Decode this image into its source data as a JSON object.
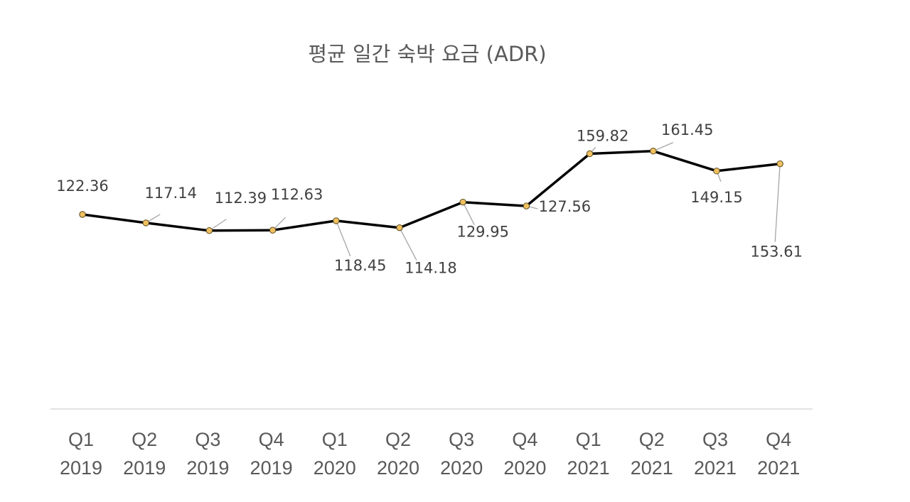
{
  "chart_data": {
    "type": "line",
    "title": "평균 일간 숙박 요금 (ADR)",
    "xlabel": "",
    "ylabel": "",
    "categories": [
      [
        "Q1",
        "2019"
      ],
      [
        "Q2",
        "2019"
      ],
      [
        "Q3",
        "2019"
      ],
      [
        "Q4",
        "2019"
      ],
      [
        "Q1",
        "2020"
      ],
      [
        "Q2",
        "2020"
      ],
      [
        "Q3",
        "2020"
      ],
      [
        "Q4",
        "2020"
      ],
      [
        "Q1",
        "2021"
      ],
      [
        "Q2",
        "2021"
      ],
      [
        "Q3",
        "2021"
      ],
      [
        "Q4",
        "2021"
      ]
    ],
    "series": [
      {
        "values": [
          122.36,
          117.14,
          112.39,
          112.63,
          118.45,
          114.18,
          129.95,
          127.56,
          159.82,
          161.45,
          149.15,
          153.61
        ],
        "labels": [
          "122.36",
          "117.14",
          "112.39",
          "112.63",
          "118.45",
          "114.18",
          "129.95",
          "127.56",
          "159.82",
          "161.45",
          "149.15",
          "153.61"
        ],
        "color": "#000000",
        "marker_color": "#f0c060"
      }
    ],
    "ylim": [
      0,
      175
    ],
    "grid": false,
    "legend": "none"
  }
}
